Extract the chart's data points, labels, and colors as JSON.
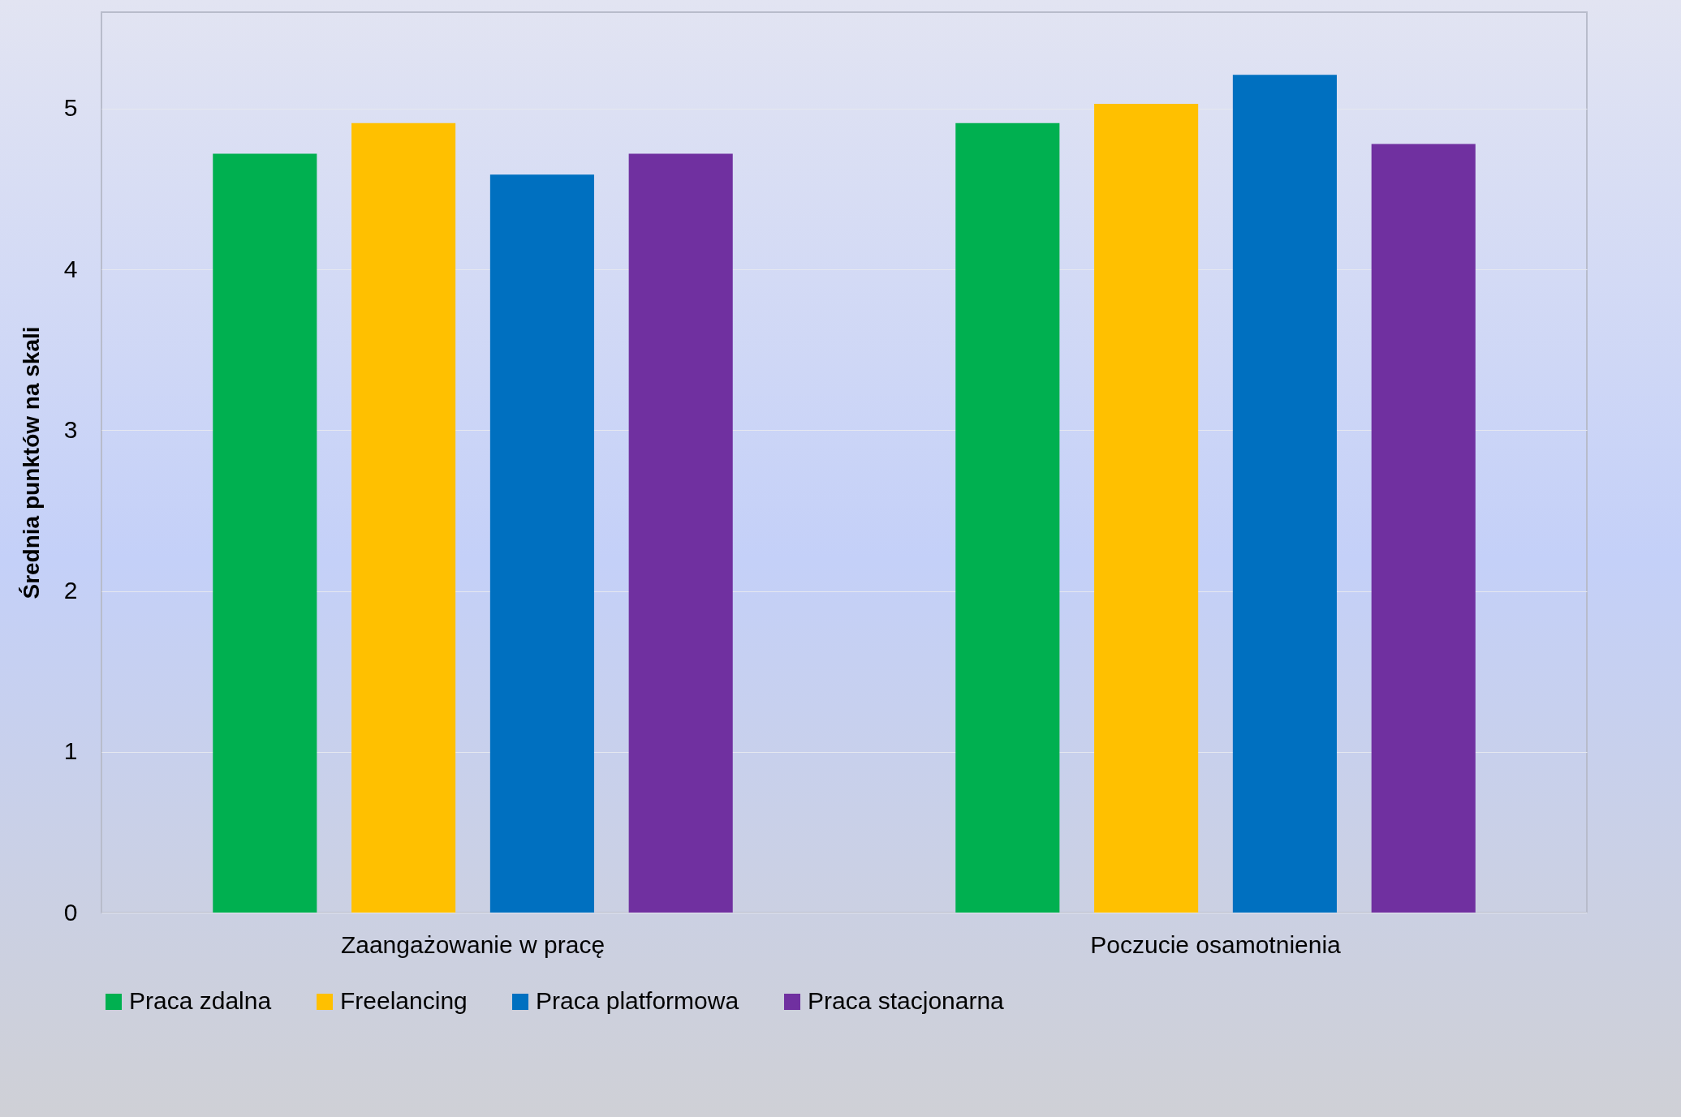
{
  "chart_data": {
    "type": "bar",
    "ylabel": "Średnia punktów na skali",
    "categories": [
      "Zaangażowanie w pracę",
      "Poczucie osamotnienia"
    ],
    "series": [
      {
        "name": "Praca zdalna",
        "color": "#00b050",
        "values": [
          4.72,
          4.91
        ]
      },
      {
        "name": "Freelancing",
        "color": "#ffc000",
        "values": [
          4.91,
          5.03
        ]
      },
      {
        "name": "Praca platformowa",
        "color": "#0070c0",
        "values": [
          4.59,
          5.21
        ]
      },
      {
        "name": "Praca stacjonarna",
        "color": "#7030a0",
        "values": [
          4.72,
          4.78
        ]
      }
    ],
    "ylim": [
      0,
      5.6
    ],
    "yticks": [
      0,
      1,
      2,
      3,
      4,
      5
    ],
    "grid": "y",
    "legend": "bottom"
  }
}
